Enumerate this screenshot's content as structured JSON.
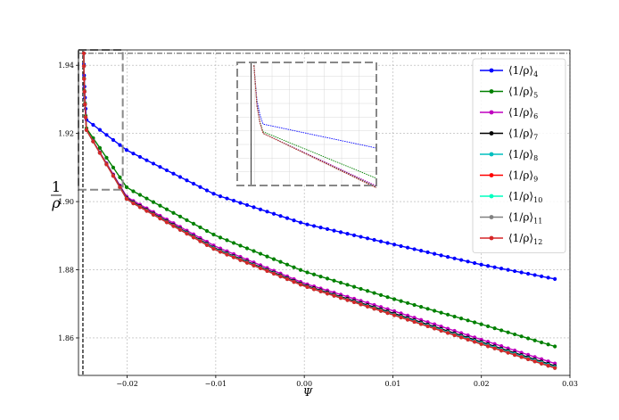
{
  "chart_data": {
    "type": "line",
    "xlabel": "Ψ",
    "ylabel_numerator": "1",
    "ylabel_denominator": "ρ",
    "xlim": [
      -0.0255,
      0.03
    ],
    "ylim": [
      1.849,
      1.9445
    ],
    "x_ticks": [
      -0.02,
      -0.01,
      0.0,
      0.01,
      0.02,
      0.03
    ],
    "x_tick_labels": [
      "−0.02",
      "−0.01",
      "0.00",
      "0.01",
      "0.02",
      "0.03"
    ],
    "y_ticks": [
      1.86,
      1.88,
      1.9,
      1.92,
      1.94
    ],
    "y_tick_labels": [
      "1.86",
      "1.88",
      "1.90",
      "1.92",
      "1.94"
    ],
    "grid": true,
    "legend_position": "top-right",
    "reference_lines": {
      "horizontal_y": 1.9435,
      "vertical_x": -0.025
    },
    "x_start": -0.0249,
    "x_end": 0.0283,
    "n_points": 70,
    "series": [
      {
        "name": "⟨1/ρ⟩",
        "sub": "4",
        "color": "#0000ff",
        "key_values": {
          "start": 1.9435,
          "after_drop": 1.924,
          "x_minus_002": 1.915,
          "x_minus_001": 1.902,
          "x_0": 1.8935,
          "x_001": 1.8875,
          "x_002": 1.8815,
          "end": 1.8773
        }
      },
      {
        "name": "⟨1/ρ⟩",
        "sub": "5",
        "color": "#008000",
        "key_values": {
          "start": 1.9435,
          "after_drop": 1.9215,
          "x_minus_002": 1.904,
          "x_minus_001": 1.89,
          "x_0": 1.8795,
          "x_001": 1.8715,
          "x_002": 1.864,
          "end": 1.8575
        }
      },
      {
        "name": "⟨1/ρ⟩",
        "sub": "6",
        "color": "#bf00bf",
        "key_values": {
          "start": 1.9435,
          "after_drop": 1.921,
          "x_minus_002": 1.9012,
          "x_minus_001": 1.8868,
          "x_0": 1.876,
          "x_001": 1.868,
          "x_002": 1.8595,
          "end": 1.8525
        }
      },
      {
        "name": "⟨1/ρ⟩",
        "sub": "7",
        "color": "#000000",
        "key_values": {
          "start": 1.9435,
          "after_drop": 1.921,
          "x_minus_002": 1.9008,
          "x_minus_001": 1.8862,
          "x_0": 1.8755,
          "x_001": 1.8673,
          "x_002": 1.8588,
          "end": 1.8518
        }
      },
      {
        "name": "⟨1/ρ⟩",
        "sub": "8",
        "color": "#00bfbf",
        "key_values": {
          "start": 1.9435,
          "after_drop": 1.921,
          "x_minus_002": 1.9006,
          "x_minus_001": 1.886,
          "x_0": 1.8753,
          "x_001": 1.867,
          "x_002": 1.8585,
          "end": 1.8515
        }
      },
      {
        "name": "⟨1/ρ⟩",
        "sub": "9",
        "color": "#ff0000",
        "key_values": {
          "start": 1.9435,
          "after_drop": 1.921,
          "x_minus_002": 1.9005,
          "x_minus_001": 1.8858,
          "x_0": 1.8752,
          "x_001": 1.8668,
          "x_002": 1.8582,
          "end": 1.8512
        }
      },
      {
        "name": "⟨1/ρ⟩",
        "sub": "10",
        "color": "#00ffbf",
        "key_values": {
          "start": 1.9435,
          "after_drop": 1.921,
          "x_minus_002": 1.9005,
          "x_minus_001": 1.8858,
          "x_0": 1.8752,
          "x_001": 1.8668,
          "x_002": 1.8582,
          "end": 1.8512
        }
      },
      {
        "name": "⟨1/ρ⟩",
        "sub": "11",
        "color": "#808080",
        "key_values": {
          "start": 1.9435,
          "after_drop": 1.921,
          "x_minus_002": 1.9005,
          "x_minus_001": 1.8858,
          "x_0": 1.8752,
          "x_001": 1.8668,
          "x_002": 1.8582,
          "end": 1.8512
        }
      },
      {
        "name": "⟨1/ρ⟩",
        "sub": "12",
        "color": "#d62728",
        "key_values": {
          "start": 1.9435,
          "after_drop": 1.921,
          "x_minus_002": 1.9005,
          "x_minus_001": 1.8858,
          "x_0": 1.8752,
          "x_001": 1.8668,
          "x_002": 1.8582,
          "end": 1.8512
        }
      }
    ],
    "inset": {
      "zoom_xlim": [
        -0.0255,
        -0.0205
      ],
      "zoom_ylim": [
        1.9035,
        1.9445
      ]
    }
  }
}
